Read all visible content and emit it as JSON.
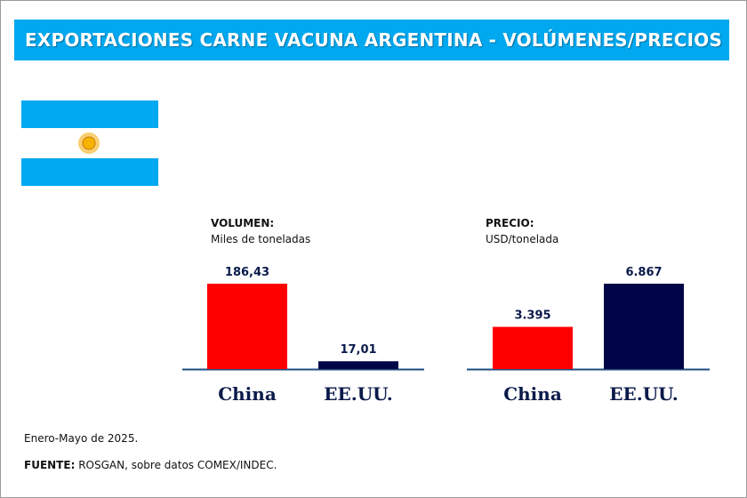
{
  "header": {
    "title": "EXPORTACIONES CARNE VACUNA ARGENTINA - VOLÚMENES/PRECIOS"
  },
  "colors": {
    "header": "#00a8f0",
    "china": "#ff0000",
    "usa": "#000547",
    "axis": "#1c4e80",
    "label": "#0a1a4a"
  },
  "chart_data": [
    {
      "type": "bar",
      "title": "VOLUMEN:",
      "subtitle": "Miles de toneladas",
      "categories": [
        "China",
        "EE.UU."
      ],
      "values": [
        186.43,
        17.01
      ],
      "value_labels": [
        "186,43",
        "17,01"
      ],
      "ylim": [
        0,
        186.43
      ]
    },
    {
      "type": "bar",
      "title": "PRECIO:",
      "subtitle": "USD/tonelada",
      "categories": [
        "China",
        "EE.UU."
      ],
      "values": [
        3395,
        6867
      ],
      "value_labels": [
        "3.395",
        "6.867"
      ],
      "ylim": [
        0,
        6867
      ]
    }
  ],
  "footer": {
    "period": "Enero-Mayo de 2025.",
    "source_label": "FUENTE:",
    "source_text": " ROSGAN, sobre datos COMEX/INDEC."
  }
}
